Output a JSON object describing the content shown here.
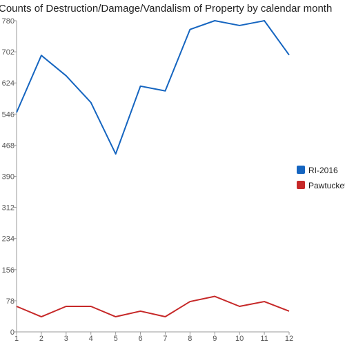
{
  "chart_data": {
    "type": "line",
    "title": "Counts of Destruction/Damage/Vandalism of Property by calendar month",
    "xlabel": "",
    "ylabel": "",
    "x": [
      1,
      2,
      3,
      4,
      5,
      6,
      7,
      8,
      9,
      10,
      11,
      12
    ],
    "x_tick_labels": [
      "1",
      "2",
      "3",
      "4",
      "5",
      "6",
      "7",
      "8",
      "9",
      "10",
      "11",
      "12"
    ],
    "ylim": [
      0,
      780
    ],
    "y_ticks": [
      0,
      78,
      156,
      234,
      312,
      390,
      468,
      546,
      624,
      702,
      780
    ],
    "y_tick_labels": [
      "0",
      "78",
      "156",
      "234",
      "312",
      "390",
      "468",
      "546",
      "624",
      "702",
      "780"
    ],
    "grid": false,
    "legend_position": "right",
    "series": [
      {
        "name": "RI-2016",
        "color": "#1565c0",
        "values": [
          550,
          693,
          642,
          575,
          446,
          616,
          604,
          758,
          780,
          768,
          780,
          694
        ]
      },
      {
        "name": "Pawtucket",
        "color": "#c62828",
        "values": [
          64,
          38,
          64,
          64,
          38,
          52,
          38,
          76,
          89,
          64,
          76,
          52
        ]
      }
    ]
  }
}
